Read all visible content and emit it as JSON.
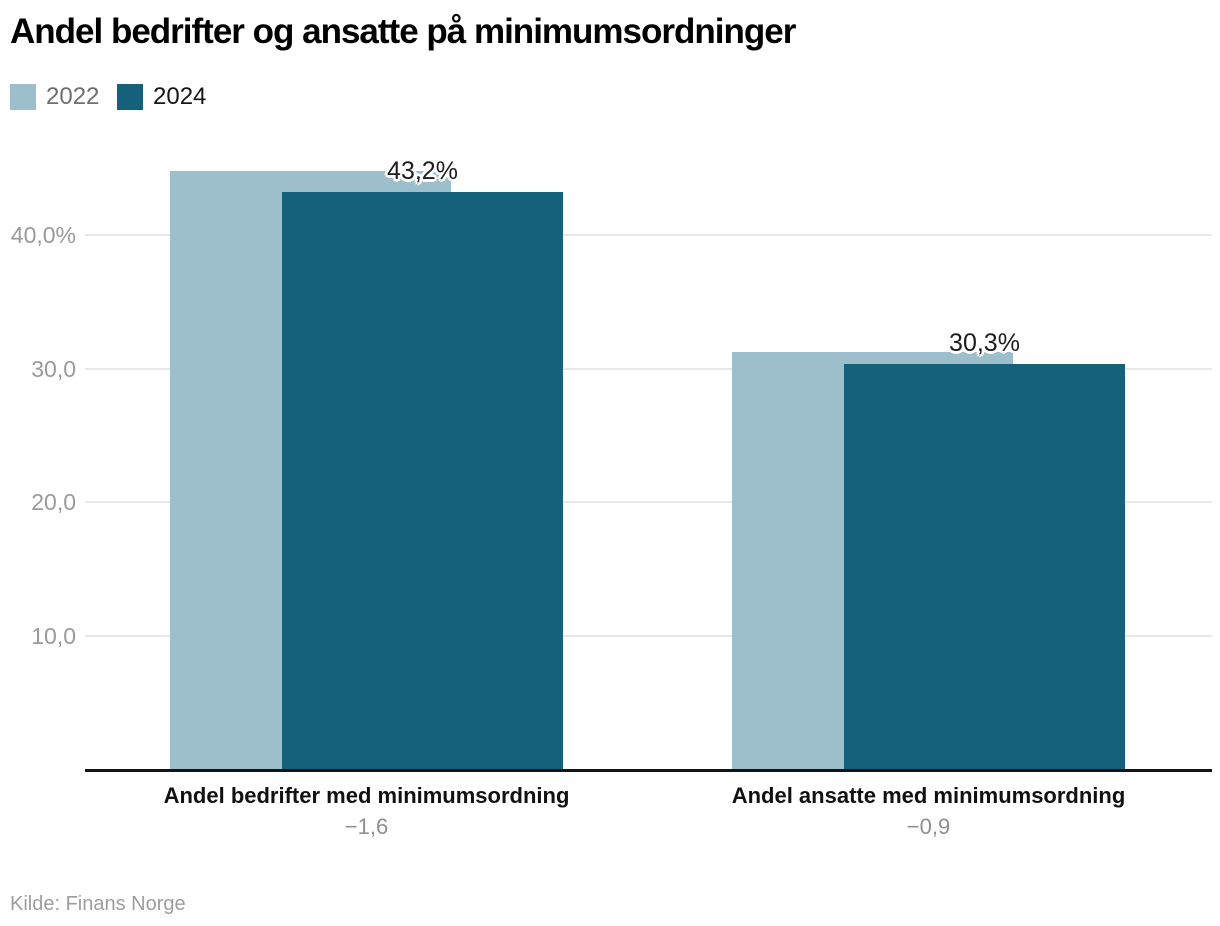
{
  "title": "Andel bedrifter og ansatte på minimumsordninger",
  "legend": [
    {
      "label": "2022",
      "swatch_color": "#9dbfcb",
      "text_color": "#6f6f6f"
    },
    {
      "label": "2024",
      "swatch_color": "#15617b",
      "text_color": "#161616"
    }
  ],
  "source": "Kilde: Finans Norge",
  "colors": {
    "series_2022": "#9dbfcb",
    "series_2024": "#15617b",
    "gridline": "#e8e8e8",
    "axis_line": "#141414",
    "tick_label": "#9a9a9a",
    "diff_label": "#8f8f8f"
  },
  "chart_data": {
    "type": "bar",
    "title": "Andel bedrifter og ansatte på minimumsordninger",
    "categories": [
      "Andel bedrifter med minimumsordning",
      "Andel ansatte med minimumsordning"
    ],
    "series": [
      {
        "name": "2022",
        "color": "#9dbfcb",
        "values": [
          44.8,
          31.2
        ]
      },
      {
        "name": "2024",
        "color": "#15617b",
        "values": [
          43.2,
          30.3
        ]
      }
    ],
    "data_labels": [
      "43,2%",
      "30,3%"
    ],
    "diff_labels": [
      "−1,6",
      "−0,9"
    ],
    "y_ticks": [
      {
        "value": 10,
        "label": "10,0"
      },
      {
        "value": 20,
        "label": "20,0"
      },
      {
        "value": 30,
        "label": "30,0"
      },
      {
        "value": 40,
        "label": "40,0%"
      }
    ],
    "ylim": [
      0,
      47
    ],
    "xlabel": "",
    "ylabel": "",
    "grid": true,
    "legend_position": "top-left",
    "bar_style": "overlapping",
    "source": "Kilde: Finans Norge"
  }
}
